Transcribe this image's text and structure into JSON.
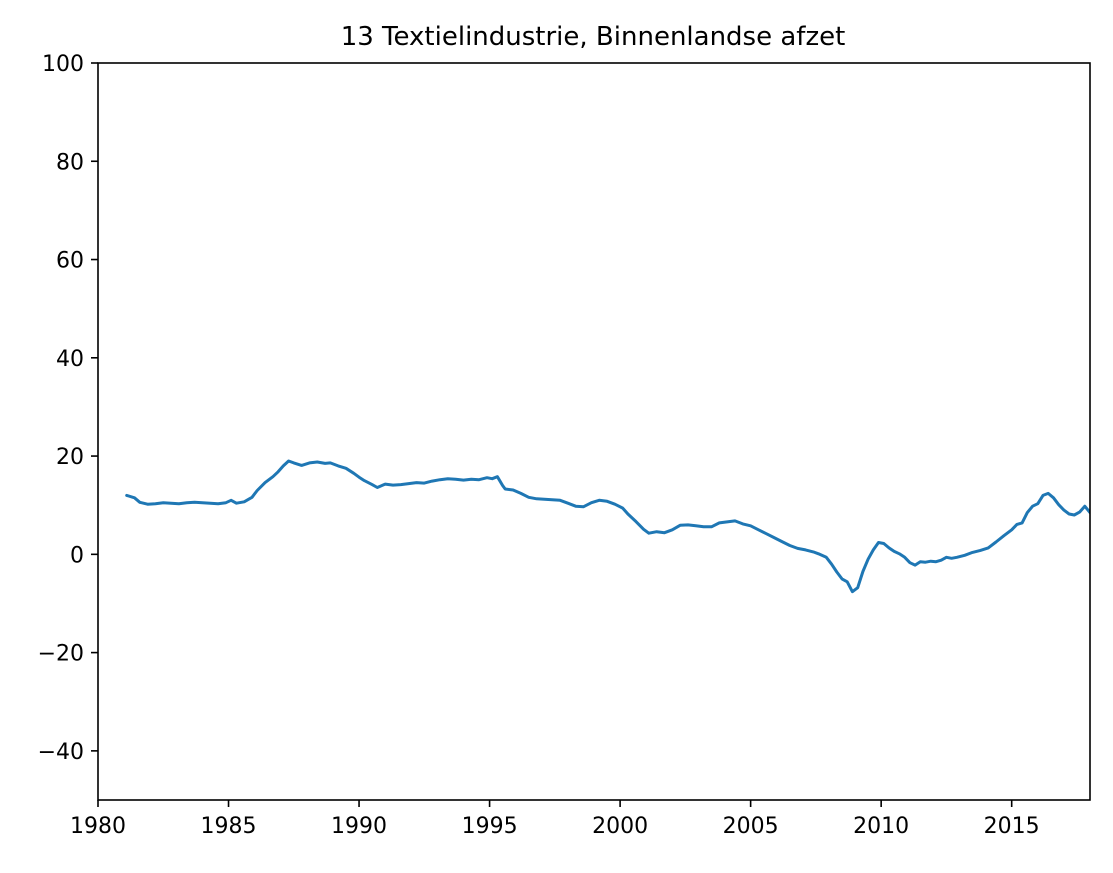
{
  "chart_data": {
    "type": "line",
    "title": "13 Textielindustrie, Binnenlandse afzet",
    "xlabel": "",
    "ylabel": "",
    "xlim": [
      1980,
      2018
    ],
    "ylim": [
      -50,
      100
    ],
    "x_ticks": [
      "1980",
      "1985",
      "1990",
      "1995",
      "2000",
      "2005",
      "2010",
      "2015"
    ],
    "y_ticks": [
      "−40",
      "−20",
      "0",
      "20",
      "40",
      "60",
      "80",
      "100"
    ],
    "grid": false,
    "legend": "none",
    "colors": {
      "line": "#1f77b4",
      "axes": "#000000",
      "background": "#ffffff"
    },
    "series": [
      {
        "x": [
          1981.1,
          1981.4,
          1981.6,
          1981.9,
          1982.2,
          1982.5,
          1982.8,
          1983.1,
          1983.4,
          1983.7,
          1984.0,
          1984.3,
          1984.6,
          1984.9,
          1985.1,
          1985.3,
          1985.6,
          1985.9,
          1986.1,
          1986.4,
          1986.7,
          1986.9,
          1987.1,
          1987.3,
          1987.5,
          1987.8,
          1988.1,
          1988.4,
          1988.7,
          1988.9,
          1989.2,
          1989.5,
          1989.8,
          1990.0,
          1990.2,
          1990.5,
          1990.7,
          1991.0,
          1991.3,
          1991.6,
          1991.9,
          1992.2,
          1992.5,
          1992.8,
          1993.1,
          1993.4,
          1993.7,
          1994.0,
          1994.3,
          1994.6,
          1994.9,
          1995.1,
          1995.3,
          1995.5,
          1995.6,
          1995.9,
          1996.2,
          1996.5,
          1996.8,
          1997.1,
          1997.4,
          1997.7,
          1998.0,
          1998.3,
          1998.6,
          1998.9,
          1999.2,
          1999.5,
          1999.8,
          2000.1,
          2000.3,
          2000.6,
          2000.9,
          2001.1,
          2001.4,
          2001.7,
          2002.0,
          2002.3,
          2002.6,
          2002.9,
          2003.2,
          2003.5,
          2003.8,
          2004.1,
          2004.4,
          2004.7,
          2005.0,
          2005.3,
          2005.6,
          2005.9,
          2006.2,
          2006.5,
          2006.8,
          2007.1,
          2007.4,
          2007.6,
          2007.9,
          2008.1,
          2008.3,
          2008.5,
          2008.7,
          2008.9,
          2009.1,
          2009.3,
          2009.5,
          2009.7,
          2009.9,
          2010.1,
          2010.3,
          2010.5,
          2010.7,
          2010.9,
          2011.1,
          2011.3,
          2011.5,
          2011.7,
          2011.9,
          2012.1,
          2012.3,
          2012.5,
          2012.7,
          2012.9,
          2013.2,
          2013.5,
          2013.8,
          2014.1,
          2014.4,
          2014.7,
          2015.0,
          2015.2,
          2015.4,
          2015.6,
          2015.8,
          2016.0,
          2016.2,
          2016.4,
          2016.6,
          2016.8,
          2017.0,
          2017.2,
          2017.4,
          2017.6,
          2017.8,
          2018.0
        ],
        "values": [
          12.0,
          11.5,
          10.6,
          10.2,
          10.3,
          10.5,
          10.4,
          10.3,
          10.5,
          10.6,
          10.5,
          10.4,
          10.3,
          10.5,
          11.0,
          10.4,
          10.7,
          11.6,
          13.0,
          14.6,
          15.8,
          16.8,
          18.0,
          19.0,
          18.6,
          18.1,
          18.6,
          18.8,
          18.5,
          18.6,
          18.0,
          17.5,
          16.5,
          15.7,
          15.0,
          14.2,
          13.6,
          14.3,
          14.1,
          14.2,
          14.4,
          14.6,
          14.5,
          14.9,
          15.2,
          15.4,
          15.3,
          15.1,
          15.3,
          15.2,
          15.6,
          15.4,
          15.8,
          14.0,
          13.3,
          13.1,
          12.4,
          11.6,
          11.3,
          11.2,
          11.1,
          11.0,
          10.4,
          9.8,
          9.7,
          10.5,
          11.0,
          10.8,
          10.2,
          9.4,
          8.2,
          6.7,
          5.1,
          4.3,
          4.6,
          4.4,
          5.0,
          5.9,
          6.0,
          5.8,
          5.6,
          5.6,
          6.4,
          6.6,
          6.8,
          6.2,
          5.8,
          5.0,
          4.2,
          3.4,
          2.6,
          1.8,
          1.2,
          0.9,
          0.5,
          0.1,
          -0.6,
          -2.0,
          -3.6,
          -5.0,
          -5.6,
          -7.6,
          -6.8,
          -3.5,
          -1.0,
          0.9,
          2.4,
          2.2,
          1.3,
          0.6,
          0.1,
          -0.6,
          -1.7,
          -2.2,
          -1.5,
          -1.6,
          -1.4,
          -1.5,
          -1.2,
          -0.6,
          -0.8,
          -0.6,
          -0.2,
          0.4,
          0.8,
          1.3,
          2.5,
          3.8,
          5.0,
          6.1,
          6.4,
          8.5,
          9.8,
          10.3,
          12.0,
          12.4,
          11.5,
          10.1,
          9.0,
          8.2,
          8.0,
          8.6,
          9.8,
          8.5
        ]
      }
    ]
  }
}
